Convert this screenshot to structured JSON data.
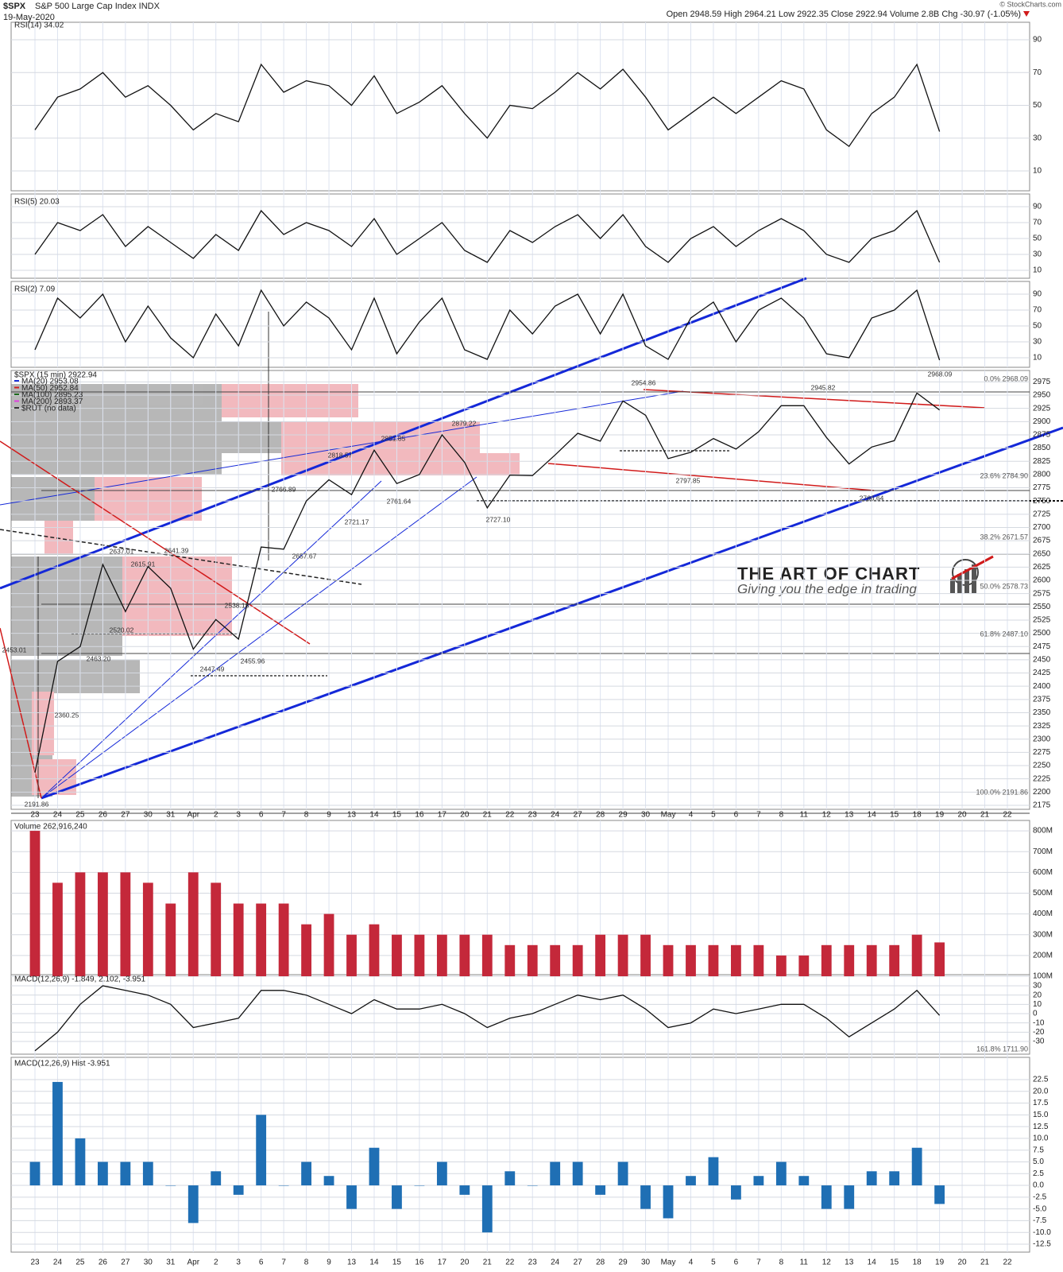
{
  "header": {
    "symbol": "$SPX",
    "name": "S&P 500 Large Cap Index INDX",
    "date": "19-May-2020",
    "quote": "Open 2948.59  High 2964.21  Low 2922.35  Close 2922.94  Volume 2.8B  Chg -30.97 (-1.05%)",
    "copyright": "© StockCharts.com"
  },
  "watermark": {
    "title": "THE ART OF CHART",
    "tagline": "Giving you the edge in trading"
  },
  "chart_data": [
    {
      "type": "line",
      "title": "RSI(14) 34.02",
      "color": "#111111",
      "ylim": [
        0,
        100
      ],
      "yticks": [
        10,
        30,
        50,
        70,
        90
      ],
      "grid": true,
      "values": [
        35,
        55,
        60,
        70,
        55,
        62,
        50,
        35,
        45,
        40,
        75,
        58,
        65,
        62,
        50,
        68,
        45,
        52,
        62,
        45,
        30,
        50,
        48,
        58,
        70,
        60,
        72,
        55,
        35,
        45,
        55,
        45,
        55,
        65,
        60,
        35,
        25,
        45,
        55,
        75,
        34,
        null,
        null,
        null
      ]
    },
    {
      "type": "line",
      "title": "RSI(5) 20.03",
      "color": "#111111",
      "ylim": [
        0,
        100
      ],
      "yticks": [
        10,
        30,
        50,
        70,
        90
      ],
      "grid": true,
      "values": [
        30,
        70,
        60,
        80,
        40,
        65,
        45,
        25,
        55,
        35,
        85,
        55,
        70,
        60,
        40,
        75,
        30,
        50,
        70,
        35,
        20,
        60,
        45,
        65,
        80,
        50,
        80,
        40,
        20,
        50,
        65,
        40,
        60,
        75,
        60,
        30,
        20,
        50,
        60,
        85,
        20,
        null,
        null,
        null
      ]
    },
    {
      "type": "line",
      "title": "RSI(2) 7.09",
      "color": "#111111",
      "ylim": [
        0,
        100
      ],
      "yticks": [
        10,
        30,
        50,
        70,
        90
      ],
      "grid": true,
      "values": [
        20,
        85,
        60,
        90,
        30,
        75,
        35,
        10,
        65,
        25,
        95,
        50,
        80,
        60,
        20,
        85,
        15,
        55,
        85,
        20,
        8,
        70,
        40,
        75,
        90,
        40,
        90,
        25,
        8,
        60,
        80,
        30,
        70,
        85,
        60,
        15,
        10,
        60,
        70,
        95,
        7,
        null,
        null,
        null
      ]
    },
    {
      "type": "line",
      "title": "$SPX (15 min) 2922.94",
      "color": "#111111",
      "ylim": [
        2170,
        2990
      ],
      "grid": true,
      "yticks": [
        2175,
        2200,
        2225,
        2250,
        2275,
        2300,
        2325,
        2350,
        2375,
        2400,
        2425,
        2450,
        2475,
        2500,
        2525,
        2550,
        2575,
        2600,
        2625,
        2650,
        2675,
        2700,
        2725,
        2750,
        2775,
        2800,
        2825,
        2850,
        2875,
        2900,
        2925,
        2950,
        2975
      ],
      "categories": [
        "23",
        "24",
        "25",
        "26",
        "27",
        "30",
        "31",
        "Apr",
        "2",
        "3",
        "6",
        "7",
        "8",
        "9",
        "13",
        "14",
        "15",
        "16",
        "17",
        "20",
        "21",
        "22",
        "23",
        "24",
        "27",
        "28",
        "29",
        "30",
        "May",
        "4",
        "5",
        "6",
        "7",
        "8",
        "11",
        "12",
        "13",
        "14",
        "15",
        "18",
        "19",
        "20",
        "21",
        "22"
      ],
      "values": [
        2237,
        2447,
        2475,
        2630,
        2541,
        2626,
        2585,
        2470,
        2526,
        2489,
        2663,
        2659,
        2750,
        2790,
        2762,
        2846,
        2783,
        2800,
        2875,
        2823,
        2737,
        2799,
        2798,
        2837,
        2878,
        2863,
        2939,
        2912,
        2830,
        2842,
        2868,
        2848,
        2881,
        2930,
        2930,
        2870,
        2820,
        2852,
        2864,
        2954,
        2922,
        null,
        null,
        null
      ],
      "legend": [
        {
          "label": "MA(20) 2953.08",
          "color": "#1a2fd6"
        },
        {
          "label": "MA(50) 2952.84",
          "color": "#d11a1a"
        },
        {
          "label": "MA(100) 2895.23",
          "color": "#1d6b1d"
        },
        {
          "label": "MA(200) 2893.37",
          "color": "#e040e0"
        },
        {
          "label": "$RUT (no data)",
          "color": "#333333"
        }
      ],
      "annotations": [
        "2191.86",
        "2453.01",
        "2360.25",
        "2463.20",
        "2520.02",
        "2637.01",
        "2615.91",
        "2641.39",
        "2538.18",
        "2447.49",
        "2455.96",
        "2766.89",
        "2657.67",
        "2818.57",
        "2721.17",
        "2761.64",
        "2851.85",
        "2879.22",
        "2727.10",
        "2954.86",
        "2797.85",
        "2945.82",
        "2766.64",
        "2968.09"
      ],
      "fib_labels": [
        "0.0% 2968.09",
        "23.6% 2784.90",
        "38.2% 2671.57",
        "50.0% 2578.73",
        "61.8% 2487.10",
        "100.0% 2191.86",
        "161.8% 1711.90"
      ]
    },
    {
      "type": "bar",
      "title": "Volume 262,916,240",
      "color": "#c4283a",
      "ylim": [
        100000000,
        850000000
      ],
      "grid": true,
      "yticks": [
        {
          "value": 100000000,
          "label": "100M"
        },
        {
          "value": 200000000,
          "label": "200M"
        },
        {
          "value": 300000000,
          "label": "300M"
        },
        {
          "value": 400000000,
          "label": "400M"
        },
        {
          "value": 500000000,
          "label": "500M"
        },
        {
          "value": 600000000,
          "label": "600M"
        },
        {
          "value": 700000000,
          "label": "700M"
        },
        {
          "value": 800000000,
          "label": "800M"
        }
      ],
      "values": [
        800000000,
        550000000,
        600000000,
        600000000,
        600000000,
        550000000,
        450000000,
        600000000,
        550000000,
        450000000,
        450000000,
        450000000,
        350000000,
        400000000,
        300000000,
        350000000,
        300000000,
        300000000,
        300000000,
        300000000,
        300000000,
        250000000,
        250000000,
        250000000,
        250000000,
        300000000,
        300000000,
        300000000,
        250000000,
        250000000,
        250000000,
        250000000,
        250000000,
        200000000,
        200000000,
        250000000,
        250000000,
        250000000,
        250000000,
        300000000,
        262916240,
        null,
        null,
        null
      ]
    },
    {
      "type": "line",
      "title": "MACD(12,26,9) -1.849, 2.102, -3.951",
      "color": "#111111",
      "ylim": [
        -40,
        40
      ],
      "yticks": [
        -30,
        -20,
        -10,
        0,
        10,
        20,
        30
      ],
      "grid": true,
      "values": [
        -40,
        -20,
        10,
        30,
        25,
        20,
        10,
        -15,
        -10,
        -5,
        25,
        25,
        20,
        10,
        0,
        15,
        5,
        5,
        10,
        0,
        -15,
        -5,
        0,
        10,
        20,
        15,
        20,
        5,
        -15,
        -10,
        5,
        0,
        5,
        10,
        10,
        -5,
        -25,
        -10,
        5,
        25,
        -1.849,
        null,
        null,
        null
      ]
    },
    {
      "type": "bar",
      "title": "MACD(12,26,9) Hist -3.951",
      "color": "#1f6fb4",
      "ylim": [
        -13.5,
        24
      ],
      "grid": true,
      "yticks": [
        22.5,
        {
          "value": 20,
          "label": "20.0"
        },
        17.5,
        {
          "value": 15,
          "label": "15.0"
        },
        12.5,
        {
          "value": 10,
          "label": "10.0"
        },
        7.5,
        {
          "value": 5,
          "label": "5.0"
        },
        2.5,
        {
          "value": 0,
          "label": "0.0"
        },
        -2.5,
        {
          "value": -5,
          "label": "-5.0"
        },
        -7.5,
        {
          "value": -10,
          "label": "-10.0"
        },
        -12.5
      ],
      "values": [
        5,
        22,
        10,
        5,
        5,
        5,
        0,
        -8,
        3,
        -2,
        15,
        0,
        5,
        2,
        -5,
        8,
        -5,
        0,
        5,
        -2,
        -10,
        3,
        0,
        5,
        5,
        -2,
        5,
        -5,
        -7,
        2,
        6,
        -3,
        2,
        5,
        2,
        -5,
        -5,
        3,
        3,
        8,
        -3.951,
        null,
        null,
        null
      ]
    }
  ]
}
